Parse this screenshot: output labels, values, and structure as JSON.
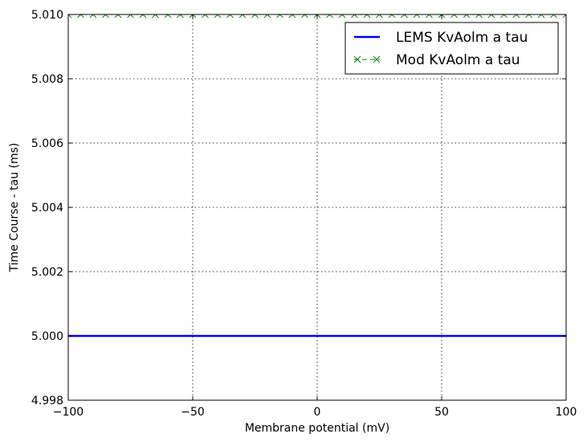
{
  "chart_data": {
    "type": "line",
    "xlabel": "Membrane potential (mV)",
    "ylabel": "Time Course - tau (ms)",
    "xlim": [
      -100,
      100
    ],
    "ylim": [
      4.998,
      5.01
    ],
    "x_ticks": [
      -100,
      -50,
      0,
      50,
      100
    ],
    "x_tick_labels": [
      "−100",
      "−50",
      "0",
      "50",
      "100"
    ],
    "y_ticks": [
      4.998,
      5.0,
      5.002,
      5.004,
      5.006,
      5.008,
      5.01
    ],
    "y_tick_labels": [
      "4.998",
      "5.000",
      "5.002",
      "5.004",
      "5.006",
      "5.008",
      "5.010"
    ],
    "grid": true,
    "legend_position": "top-right",
    "series": [
      {
        "name": "LEMS KvAolm a tau",
        "color": "#0000ff",
        "style": "solid-line",
        "x": [
          -100,
          100
        ],
        "y": [
          5.0,
          5.0
        ]
      },
      {
        "name": "Mod KvAolm a tau",
        "color": "#008000",
        "style": "dashed-line-x-markers",
        "x": [
          -100,
          -95,
          -90,
          -85,
          -80,
          -75,
          -70,
          -65,
          -60,
          -55,
          -50,
          -45,
          -40,
          -35,
          -30,
          -25,
          -20,
          -15,
          -10,
          -5,
          0,
          5,
          10,
          15,
          20,
          25,
          30,
          35,
          40,
          45,
          50,
          55,
          60,
          65,
          70,
          75,
          80,
          85,
          90,
          95,
          100
        ],
        "y": [
          5.01,
          5.01,
          5.01,
          5.01,
          5.01,
          5.01,
          5.01,
          5.01,
          5.01,
          5.01,
          5.01,
          5.01,
          5.01,
          5.01,
          5.01,
          5.01,
          5.01,
          5.01,
          5.01,
          5.01,
          5.01,
          5.01,
          5.01,
          5.01,
          5.01,
          5.01,
          5.01,
          5.01,
          5.01,
          5.01,
          5.01,
          5.01,
          5.01,
          5.01,
          5.01,
          5.01,
          5.01,
          5.01,
          5.01,
          5.01,
          5.01
        ]
      }
    ]
  }
}
